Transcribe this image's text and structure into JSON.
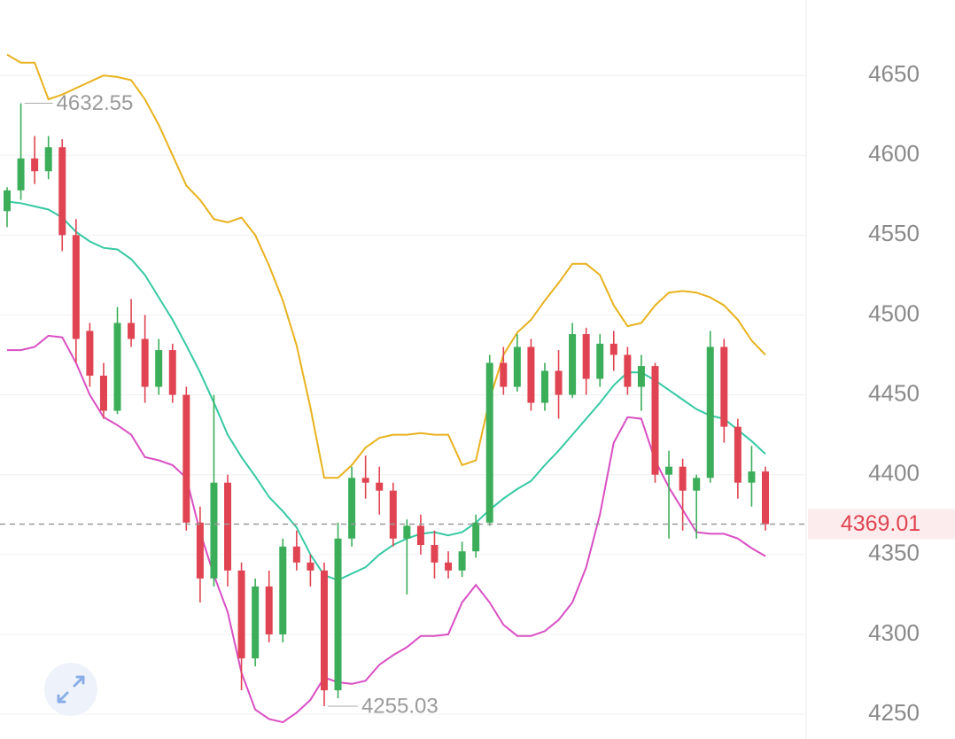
{
  "chart_data": {
    "type": "candlestick",
    "up_color": "#3cae5a",
    "down_color": "#e04452",
    "open": [
      4565,
      4578,
      4598,
      4590,
      4605,
      4550,
      4490,
      4462,
      4440,
      4495,
      4485,
      4455,
      4478,
      4450,
      4370,
      4335,
      4395,
      4340,
      4285,
      4330,
      4300,
      4355,
      4345,
      4340,
      4265,
      4360,
      4398,
      4395,
      4390,
      4360,
      4368,
      4356,
      4345,
      4340,
      4352,
      4370,
      4470,
      4455,
      4480,
      4445,
      4465,
      4450,
      4488,
      4460,
      4482,
      4475,
      4455,
      4468,
      4400,
      4405,
      4390,
      4398,
      4480,
      4430,
      4395,
      4402
    ],
    "high": [
      4580,
      4632.55,
      4612,
      4612,
      4610,
      4560,
      4495,
      4470,
      4505,
      4510,
      4500,
      4485,
      4482,
      4455,
      4380,
      4450,
      4400,
      4345,
      4335,
      4340,
      4360,
      4365,
      4350,
      4345,
      4370,
      4405,
      4412,
      4405,
      4395,
      4372,
      4375,
      4365,
      4352,
      4358,
      4375,
      4475,
      4480,
      4488,
      4485,
      4470,
      4478,
      4495,
      4492,
      4488,
      4490,
      4480,
      4475,
      4470,
      4415,
      4410,
      4400,
      4490,
      4485,
      4435,
      4418,
      4405
    ],
    "low": [
      4555,
      4572,
      4582,
      4585,
      4540,
      4470,
      4455,
      4435,
      4438,
      4480,
      4445,
      4450,
      4445,
      4365,
      4320,
      4330,
      4330,
      4265,
      4280,
      4295,
      4295,
      4340,
      4330,
      4255.03,
      4260,
      4355,
      4385,
      4375,
      4355,
      4325,
      4350,
      4335,
      4335,
      4336,
      4348,
      4368,
      4450,
      4452,
      4440,
      4440,
      4435,
      4448,
      4450,
      4455,
      4465,
      4450,
      4440,
      4395,
      4360,
      4365,
      4360,
      4395,
      4420,
      4385,
      4380,
      4365
    ],
    "close": [
      4578,
      4598,
      4590,
      4605,
      4550,
      4485,
      4462,
      4440,
      4495,
      4485,
      4455,
      4478,
      4450,
      4370,
      4335,
      4395,
      4340,
      4285,
      4330,
      4300,
      4355,
      4345,
      4340,
      4265,
      4360,
      4398,
      4395,
      4390,
      4360,
      4368,
      4356,
      4345,
      4340,
      4352,
      4370,
      4470,
      4455,
      4480,
      4445,
      4465,
      4450,
      4488,
      4460,
      4482,
      4475,
      4455,
      4468,
      4400,
      4405,
      4390,
      4398,
      4480,
      4430,
      4395,
      4402,
      4369.01
    ],
    "bands": [
      {
        "color": "#e8b21e",
        "values": [
          4663,
          4658,
          4658,
          4635,
          4638,
          4642,
          4646,
          4650,
          4649,
          4647,
          4635,
          4619,
          4600,
          4581,
          4572,
          4560,
          4558,
          4561,
          4550,
          4531,
          4509,
          4481,
          4442,
          4398,
          4398,
          4406,
          4417,
          4423,
          4425,
          4425,
          4426,
          4425,
          4425,
          4406,
          4409,
          4447,
          4475,
          4489,
          4497,
          4509,
          4520,
          4532,
          4532,
          4525,
          4506,
          4493,
          4495,
          4506,
          4514,
          4515,
          4514,
          4511,
          4506,
          4497,
          4484,
          4475
        ]
      },
      {
        "color": "#36c9a3",
        "values": [
          4571,
          4570,
          4568,
          4566,
          4561,
          4552,
          4546,
          4542,
          4541,
          4535,
          4525,
          4511,
          4497,
          4481,
          4464,
          4445,
          4425,
          4411,
          4399,
          4386,
          4377,
          4367,
          4350,
          4337,
          4334,
          4338,
          4342,
          4350,
          4356,
          4360,
          4363,
          4364,
          4362,
          4364,
          4370,
          4378,
          4385,
          4391,
          4396,
          4406,
          4415,
          4425,
          4435,
          4445,
          4456,
          4464,
          4464,
          4459,
          4453,
          4447,
          4441,
          4437,
          4435,
          4428,
          4421,
          4413
        ]
      },
      {
        "color": "#d94fc4",
        "values": [
          4478,
          4478,
          4480,
          4487,
          4486,
          4470,
          4450,
          4436,
          4431,
          4425,
          4411,
          4409,
          4406,
          4398,
          4364,
          4337,
          4314,
          4276,
          4253,
          4247,
          4245,
          4251,
          4259,
          4273,
          4270,
          4269,
          4271,
          4281,
          4287,
          4292,
          4299,
          4299,
          4300,
          4320,
          4331,
          4320,
          4306,
          4299,
          4299,
          4302,
          4309,
          4320,
          4342,
          4375,
          4420,
          4436,
          4435,
          4409,
          4392,
          4378,
          4364,
          4363,
          4363,
          4360,
          4354,
          4349
        ]
      }
    ],
    "ylim": [
      4234.5,
      4697.2
    ],
    "yticks": [
      4250,
      4300,
      4350,
      4400,
      4450,
      4500,
      4550,
      4600,
      4650
    ],
    "grid": true
  }
}
